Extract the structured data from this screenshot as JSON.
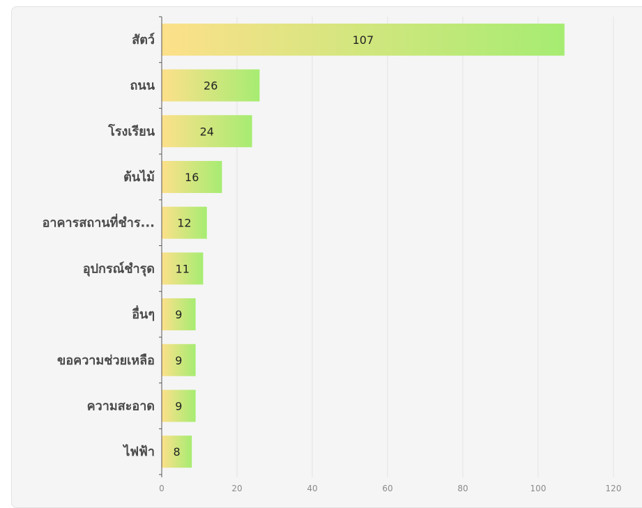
{
  "chart_data": {
    "type": "bar",
    "orientation": "horizontal",
    "title": "",
    "xlabel": "",
    "ylabel": "",
    "categories": [
      "สัตว์",
      "ถนน",
      "โรงเรียน",
      "ต้นไม้",
      "อาคารสถานที่ชำร...",
      "อุปกรณ์ชำรุด",
      "อื่นๆ",
      "ขอความช่วยเหลือ",
      "ความสะอาด",
      "ไฟฟ้า"
    ],
    "values": [
      107,
      26,
      24,
      16,
      12,
      11,
      9,
      9,
      9,
      8
    ],
    "xlim": [
      0,
      120
    ],
    "xticks": [
      "0",
      "20",
      "40",
      "60",
      "80",
      "100",
      "120"
    ],
    "grid": true,
    "legend": "none",
    "colors": {
      "bar_start": "#fde08a",
      "bar_end": "#a6ec72",
      "grid": "#e3e3e3",
      "axis": "#555555",
      "background": "#f5f5f5"
    }
  }
}
